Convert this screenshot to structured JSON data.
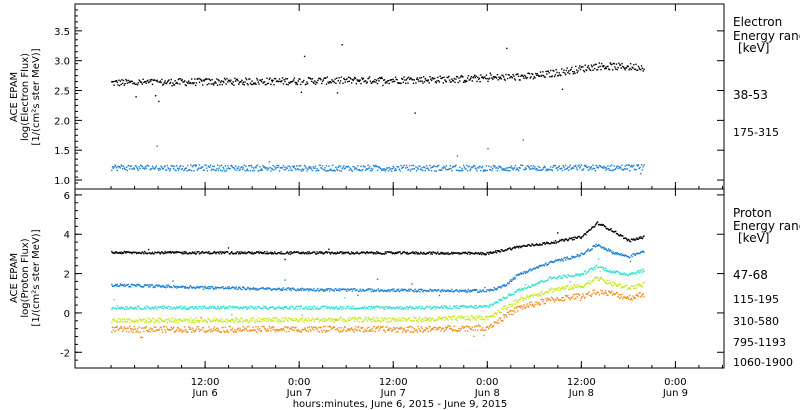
{
  "chart_data": [
    {
      "type": "scatter",
      "ylabel_lines": [
        "ACE EPAM",
        "log(Electron Flux)",
        "[1/(cm²s ster MeV)]"
      ],
      "ylim": [
        0.85,
        3.95
      ],
      "yticks": [
        1.0,
        1.5,
        2.0,
        2.5,
        3.0,
        3.5
      ],
      "ytick_labels": [
        "1.0",
        "1.5",
        "2.0",
        "2.5",
        "3.0",
        "3.5"
      ],
      "legend": {
        "title_lines": [
          "Electron",
          "Energy ranges",
          "[keV]"
        ]
      },
      "series": [
        {
          "name": "38-53",
          "color": "#000000",
          "keypoints": [
            [
              0,
              2.64
            ],
            [
              24,
              2.67
            ],
            [
              44,
              2.7
            ],
            [
              54,
              2.75
            ],
            [
              62,
              2.92
            ],
            [
              68,
              2.9
            ]
          ],
          "noise": 0.06
        },
        {
          "name": "175-315",
          "color": "#1a7fd4",
          "keypoints": [
            [
              0,
              1.22
            ],
            [
              24,
              1.21
            ],
            [
              48,
              1.21
            ],
            [
              68,
              1.22
            ]
          ],
          "noise": 0.05
        }
      ]
    },
    {
      "type": "scatter",
      "ylabel_lines": [
        "ACE EPAM",
        "log(Proton Flux)",
        "[1/(cm²s ster MeV)]"
      ],
      "ylim": [
        -2.8,
        6.3
      ],
      "yticks": [
        -2,
        0,
        2,
        4,
        6
      ],
      "ytick_labels": [
        "-2",
        "0",
        "2",
        "4",
        "6"
      ],
      "legend": {
        "title_lines": [
          "Proton",
          "Energy ranges",
          "[keV]"
        ]
      },
      "series": [
        {
          "name": "47-68",
          "color": "#000000",
          "keypoints": [
            [
              0,
              3.1
            ],
            [
              40,
              3.08
            ],
            [
              48,
              3.05
            ],
            [
              52,
              3.4
            ],
            [
              56,
              3.6
            ],
            [
              60,
              3.9
            ],
            [
              62,
              4.6
            ],
            [
              64,
              4.2
            ],
            [
              66,
              3.7
            ],
            [
              68,
              3.9
            ]
          ],
          "noise": 0.06
        },
        {
          "name": "115-195",
          "color": "#1a7fd4",
          "keypoints": [
            [
              0,
              1.45
            ],
            [
              20,
              1.25
            ],
            [
              30,
              1.2
            ],
            [
              48,
              1.15
            ],
            [
              50,
              1.4
            ],
            [
              52,
              2.0
            ],
            [
              56,
              2.6
            ],
            [
              60,
              3.0
            ],
            [
              62,
              3.5
            ],
            [
              64,
              3.1
            ],
            [
              66,
              2.9
            ],
            [
              68,
              3.2
            ]
          ],
          "noise": 0.07
        },
        {
          "name": "310-580",
          "color": "#33e0d0",
          "keypoints": [
            [
              0,
              0.3
            ],
            [
              40,
              0.3
            ],
            [
              48,
              0.35
            ],
            [
              52,
              1.2
            ],
            [
              56,
              1.8
            ],
            [
              60,
              2.0
            ],
            [
              62,
              2.4
            ],
            [
              64,
              2.1
            ],
            [
              66,
              2.0
            ],
            [
              68,
              2.2
            ]
          ],
          "noise": 0.08
        },
        {
          "name": "795-1193",
          "color": "#c8e81e",
          "keypoints": [
            [
              0,
              -0.35
            ],
            [
              40,
              -0.3
            ],
            [
              48,
              -0.2
            ],
            [
              52,
              0.7
            ],
            [
              56,
              1.2
            ],
            [
              60,
              1.4
            ],
            [
              62,
              1.8
            ],
            [
              64,
              1.5
            ],
            [
              66,
              1.3
            ],
            [
              68,
              1.5
            ]
          ],
          "noise": 0.12
        },
        {
          "name": "1060-1900",
          "color": "#ef8d1d",
          "keypoints": [
            [
              0,
              -0.8
            ],
            [
              40,
              -0.8
            ],
            [
              48,
              -0.7
            ],
            [
              52,
              0.3
            ],
            [
              56,
              0.7
            ],
            [
              60,
              0.9
            ],
            [
              62,
              1.1
            ],
            [
              64,
              1.0
            ],
            [
              66,
              0.8
            ],
            [
              68,
              1.0
            ]
          ],
          "noise": 0.15
        }
      ]
    }
  ],
  "x_axis": {
    "label": "hours:minutes, June  6, 2015 - June  9, 2015",
    "range_hours": [
      -4.6,
      78.2
    ],
    "ticks": [
      {
        "hour": 12,
        "time": "12:00",
        "day": "Jun 6"
      },
      {
        "hour": 24,
        "time": "0:00",
        "day": "Jun 7"
      },
      {
        "hour": 36,
        "time": "12:00",
        "day": "Jun 7"
      },
      {
        "hour": 48,
        "time": "0:00",
        "day": "Jun 8"
      },
      {
        "hour": 60,
        "time": "12:00",
        "day": "Jun 8"
      },
      {
        "hour": 72,
        "time": "0:00",
        "day": "Jun 9"
      }
    ]
  }
}
